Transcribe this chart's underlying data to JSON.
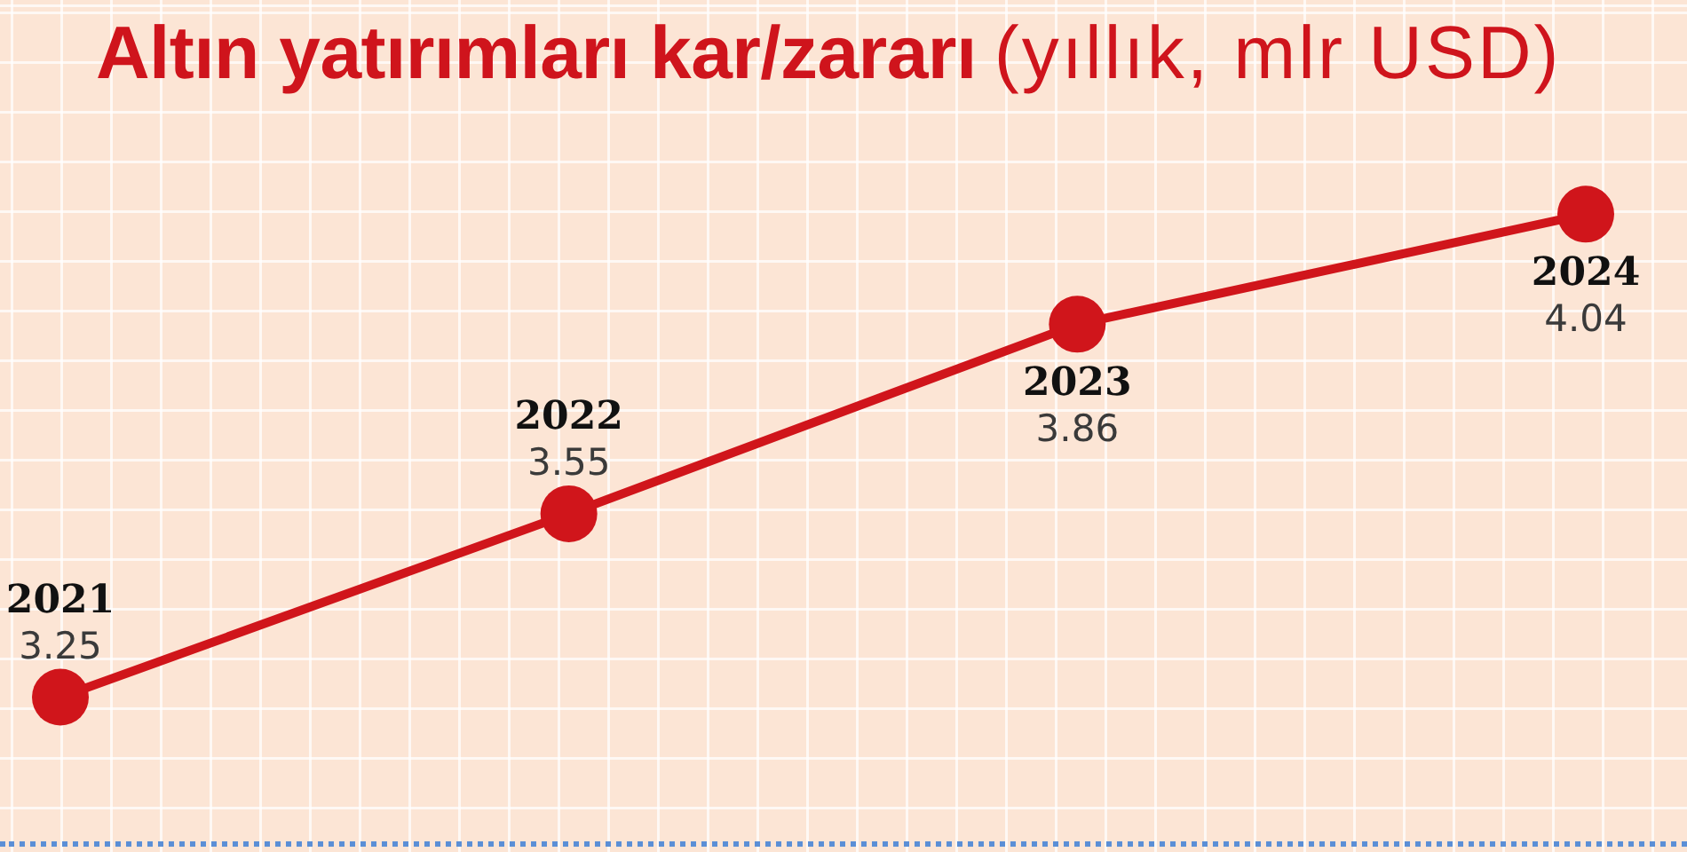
{
  "chart_data": {
    "type": "line",
    "title": "Altın yatırımları kar/zararı",
    "subtitle": "(yıllık, mlr USD)",
    "categories": [
      null,
      null,
      null,
      null
    ],
    "values": [
      3.25,
      3.55,
      3.86,
      4.04
    ],
    "color": "#d0151b",
    "annotations": [
      {
        "text": "2021",
        "y": 3.25
      },
      {
        "text": "2022",
        "y": 3.55
      },
      {
        "text": "2023",
        "y": 3.86
      },
      {
        "text": "2024",
        "y": 4.04
      }
    ],
    "data_labels": true,
    "marker": "circle",
    "legend": false,
    "tick_labels": false
  }
}
